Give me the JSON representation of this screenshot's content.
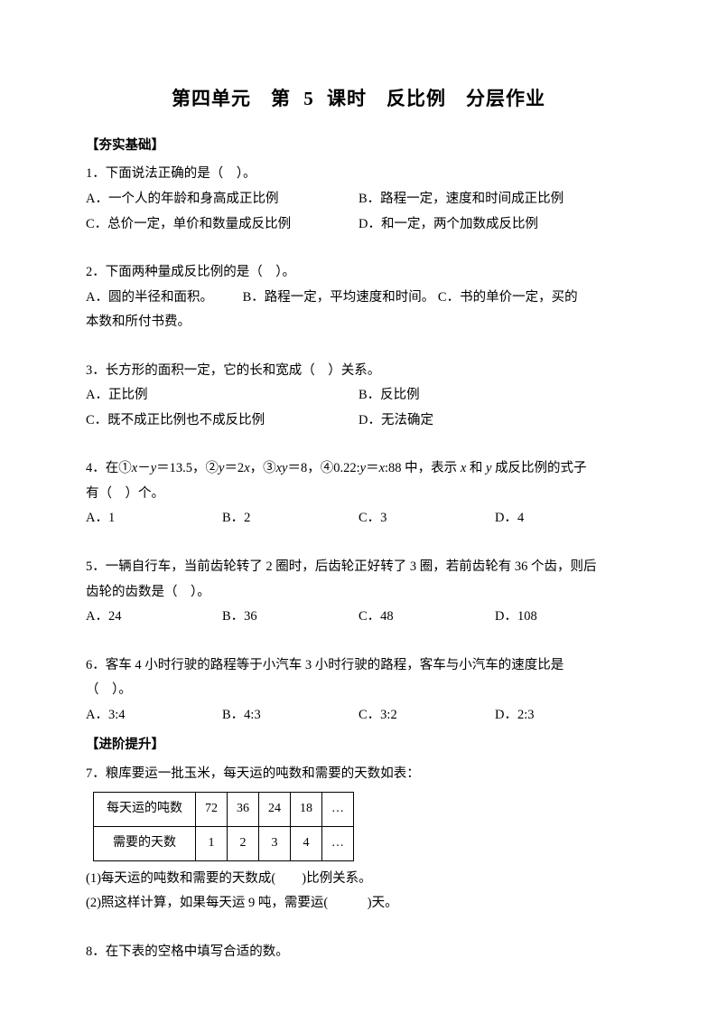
{
  "title": "第四单元 第 5 课时 反比例 分层作业",
  "section1": "【夯实基础】",
  "q1": {
    "stem": "1．下面说法正确的是（ ）。",
    "a": "A．一个人的年龄和身高成正比例",
    "b": "B．路程一定，速度和时间成正比例",
    "c": "C．总价一定，单价和数量成反比例",
    "d": "D．和一定，两个加数成反比例"
  },
  "q2": {
    "stem": "2．下面两种量成反比例的是（ ）。",
    "a": "A．圆的半径和面积。",
    "b": "B．路程一定，平均速度和时间。",
    "c_pre": "C．书的单价一定，买的",
    "line2": "本数和所付书费。"
  },
  "q3": {
    "stem": "3．长方形的面积一定，它的长和宽成（ ）关系。",
    "a": "A．正比例",
    "b": "B．反比例",
    "c": "C．既不成正比例也不成反比例",
    "d": "D．无法确定"
  },
  "q4": {
    "stem_pre": "4．在①",
    "stem_mid1": "－",
    "stem_mid2": "＝13.5，②",
    "stem_mid3": "＝2",
    "stem_mid4": "，③",
    "stem_mid5": "＝8，④0.22:",
    "stem_mid6": "＝",
    "stem_mid7": ":88 中，表示 ",
    "stem_mid8": " 和 ",
    "stem_post": " 成反比例的式子",
    "line2": "有（ ）个。",
    "a": "A．1",
    "b": "B．2",
    "c": "C．3",
    "d": "D．4"
  },
  "q5": {
    "line1": "5．一辆自行车，当前齿轮转了 2 圈时，后齿轮正好转了 3 圈，若前齿轮有 36 个齿，则后",
    "line2": "齿轮的齿数是（ ）。",
    "a": "A．24",
    "b": "B．36",
    "c": "C．48",
    "d": "D．108"
  },
  "q6": {
    "line1": "6．客车 4 小时行驶的路程等于小汽车 3 小时行驶的路程，客车与小汽车的速度比是",
    "line2": "（ ）。",
    "a": "A．3:4",
    "b": "B．4:3",
    "c": "C．3:2",
    "d": "D．2:3"
  },
  "section2": "【进阶提升】",
  "q7": {
    "stem": "7．粮库要运一批玉米，每天运的吨数和需要的天数如表：",
    "row1_label": "每天运的吨数",
    "row1": [
      "72",
      "36",
      "24",
      "18",
      "…"
    ],
    "row2_label": "需要的天数",
    "row2": [
      "1",
      "2",
      "3",
      "4",
      "…"
    ],
    "sub1": "(1)每天运的吨数和需要的天数成(  )比例关系。",
    "sub2": "(2)照这样计算，如果每天运 9 吨，需要运(   )天。"
  },
  "q8": {
    "stem": "8．在下表的空格中填写合适的数。"
  }
}
